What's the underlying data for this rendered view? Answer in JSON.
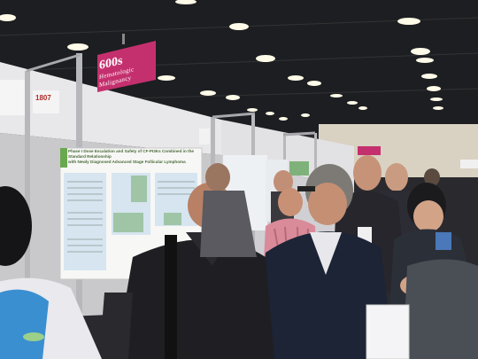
{
  "sign": {
    "number": "600s",
    "category_line1": "Hematologic",
    "category_line2": "Malignancy"
  },
  "board_label": "1807",
  "poster": {
    "title_line1": "Phase I Dose Escalation and Safety of CF-PI3Ks Combined in the Standard Relationship",
    "title_line2": "with Newly Diagnosed Advanced Stage Follicular Lymphoma"
  },
  "colors": {
    "sign": "#c4306e",
    "poster_accent": "#6aa84f",
    "jacket_blue": "#3a8fd0"
  }
}
